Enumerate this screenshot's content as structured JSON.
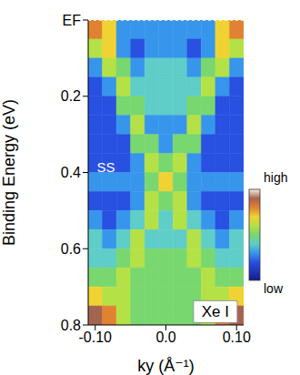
{
  "chart_data": {
    "type": "heatmap",
    "xlabel": "ky (Å⁻¹)",
    "ylabel": "Binding Energy (eV)",
    "xlim": [
      -0.11,
      0.11
    ],
    "ylim": [
      0,
      0.8
    ],
    "xticks": [
      {
        "value": -0.1,
        "label": "-0.10"
      },
      {
        "value": 0,
        "label": "0.0"
      },
      {
        "value": 0.1,
        "label": "0.10"
      }
    ],
    "yticks": [
      {
        "value": 0,
        "label": "EF"
      },
      0.2,
      0.4,
      0.6,
      0.8
    ],
    "x": [
      -0.1,
      -0.08,
      -0.06,
      -0.04,
      -0.02,
      0,
      0.02,
      0.04,
      0.06,
      0.08,
      0.1
    ],
    "y": [
      0.025,
      0.075,
      0.125,
      0.175,
      0.225,
      0.275,
      0.325,
      0.375,
      0.425,
      0.475,
      0.525,
      0.575,
      0.625,
      0.675,
      0.725,
      0.775
    ],
    "cells": [
      [
        8,
        7,
        3,
        3,
        3,
        3,
        3,
        3,
        3,
        7,
        8
      ],
      [
        6,
        7,
        3,
        2,
        3,
        3,
        3,
        2,
        3,
        7,
        6
      ],
      [
        3,
        6,
        5,
        3,
        4,
        4,
        4,
        3,
        5,
        6,
        3
      ],
      [
        2,
        3,
        6,
        4,
        4,
        4,
        4,
        4,
        6,
        3,
        2
      ],
      [
        2,
        2,
        5,
        5,
        4,
        4,
        4,
        5,
        5,
        2,
        2
      ],
      [
        2,
        2,
        3,
        6,
        3,
        3,
        3,
        6,
        3,
        2,
        2
      ],
      [
        2,
        2,
        2,
        5,
        5,
        3,
        5,
        5,
        2,
        2,
        2
      ],
      [
        2,
        2,
        2,
        3,
        6,
        5,
        6,
        3,
        2,
        2,
        2
      ],
      [
        3,
        3,
        3,
        3,
        5,
        7,
        5,
        3,
        3,
        3,
        3
      ],
      [
        2,
        2,
        2,
        3,
        6,
        5,
        6,
        3,
        2,
        2,
        2
      ],
      [
        3,
        2,
        3,
        4,
        6,
        4,
        6,
        4,
        3,
        2,
        3
      ],
      [
        4,
        3,
        4,
        6,
        4,
        4,
        4,
        6,
        4,
        3,
        4
      ],
      [
        4,
        4,
        5,
        6,
        5,
        5,
        5,
        6,
        5,
        4,
        4
      ],
      [
        5,
        5,
        6,
        5,
        5,
        5,
        5,
        5,
        6,
        5,
        5
      ],
      [
        7,
        6,
        6,
        5,
        5,
        5,
        5,
        5,
        6,
        6,
        7
      ],
      [
        9,
        8,
        6,
        5,
        5,
        5,
        5,
        5,
        6,
        8,
        9
      ]
    ],
    "colorbar": {
      "range": [
        0,
        10
      ],
      "ticks": [
        {
          "value": 0,
          "label": "low"
        },
        {
          "value": 10,
          "label": "high"
        }
      ]
    },
    "annotations": [
      {
        "text": "SS",
        "x": -0.085,
        "y": 0.39
      },
      {
        "text": "Xe I",
        "x": 0.07,
        "y": 0.765
      }
    ]
  }
}
